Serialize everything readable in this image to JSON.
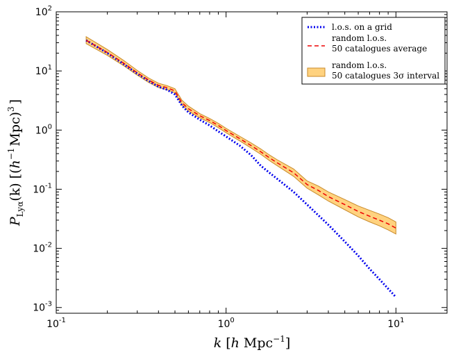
{
  "chart_data": {
    "type": "line",
    "xscale": "log",
    "yscale": "log",
    "xlim": [
      0.1,
      20
    ],
    "ylim": [
      0.0008,
      100
    ],
    "xlabel": {
      "var": "k",
      "open": "[",
      "h": "h",
      "unit": "Mpc",
      "exp": "−1",
      "close": "]"
    },
    "ylabel": {
      "var": "P",
      "sub": "Lyα",
      "arg": "(k)",
      "open": "[(",
      "h": "h",
      "hexp": "−1",
      "unit": "Mpc)",
      "exp": "3",
      "close": "]"
    },
    "x_ticks": [
      {
        "value": 0.1,
        "base": "10",
        "exp": "-1"
      },
      {
        "value": 1,
        "base": "10",
        "exp": "0"
      },
      {
        "value": 10,
        "base": "10",
        "exp": "1"
      }
    ],
    "y_ticks": [
      {
        "value": 0.001,
        "base": "10",
        "exp": "-3"
      },
      {
        "value": 0.01,
        "base": "10",
        "exp": "-2"
      },
      {
        "value": 0.1,
        "base": "10",
        "exp": "-1"
      },
      {
        "value": 1,
        "base": "10",
        "exp": "0"
      },
      {
        "value": 10,
        "base": "10",
        "exp": "1"
      },
      {
        "value": 100,
        "base": "10",
        "exp": "2"
      }
    ],
    "legend_position": "top-right",
    "series": [
      {
        "name": "l.o.s. on a grid",
        "style": "dotted",
        "color": "#0000ee",
        "x": [
          0.15,
          0.2,
          0.25,
          0.3,
          0.35,
          0.4,
          0.45,
          0.5,
          0.55,
          0.6,
          0.7,
          0.8,
          0.9,
          1.0,
          1.2,
          1.4,
          1.6,
          1.8,
          2.0,
          2.5,
          3.0,
          4.0,
          5.0,
          6.0,
          7.0,
          8.0,
          10.0
        ],
        "y": [
          33,
          20,
          13,
          9.0,
          6.8,
          5.4,
          4.8,
          4.0,
          2.6,
          2.0,
          1.5,
          1.2,
          0.95,
          0.78,
          0.55,
          0.38,
          0.25,
          0.19,
          0.15,
          0.09,
          0.055,
          0.025,
          0.013,
          0.0075,
          0.0045,
          0.003,
          0.0015
        ]
      },
      {
        "name": "random l.o.s.\n50 catalogues average",
        "style": "dashed",
        "color": "#ee0000",
        "x": [
          0.15,
          0.2,
          0.25,
          0.3,
          0.35,
          0.4,
          0.45,
          0.5,
          0.55,
          0.6,
          0.7,
          0.8,
          0.9,
          1.0,
          1.2,
          1.4,
          1.6,
          1.8,
          2.0,
          2.5,
          3.0,
          3.5,
          4.0,
          5.0,
          6.0,
          7.0,
          8.0,
          9.0,
          10.0
        ],
        "y": [
          33,
          20.5,
          13.5,
          9.3,
          7.0,
          5.7,
          5.2,
          4.6,
          2.9,
          2.3,
          1.75,
          1.45,
          1.2,
          0.98,
          0.72,
          0.55,
          0.43,
          0.34,
          0.28,
          0.19,
          0.12,
          0.095,
          0.075,
          0.055,
          0.042,
          0.035,
          0.03,
          0.026,
          0.022
        ]
      }
    ],
    "band": {
      "name": "random l.o.s.\n50 catalogues 3σ interval",
      "fill": "#ffd27f",
      "edge": "#c98a2a",
      "x": [
        0.15,
        0.2,
        0.25,
        0.3,
        0.35,
        0.4,
        0.45,
        0.5,
        0.55,
        0.6,
        0.7,
        0.8,
        0.9,
        1.0,
        1.2,
        1.4,
        1.6,
        1.8,
        2.0,
        2.5,
        3.0,
        3.5,
        4.0,
        5.0,
        6.0,
        7.0,
        8.0,
        9.0,
        10.0
      ],
      "low": [
        29,
        18.3,
        12.2,
        8.5,
        6.4,
        5.25,
        4.8,
        4.25,
        2.65,
        2.1,
        1.62,
        1.34,
        1.1,
        0.9,
        0.66,
        0.5,
        0.39,
        0.305,
        0.25,
        0.165,
        0.104,
        0.08,
        0.063,
        0.045,
        0.034,
        0.028,
        0.024,
        0.0205,
        0.0175
      ],
      "high": [
        38,
        23,
        15.0,
        10.2,
        7.6,
        6.2,
        5.65,
        5.0,
        3.2,
        2.55,
        1.9,
        1.57,
        1.3,
        1.07,
        0.79,
        0.61,
        0.48,
        0.38,
        0.315,
        0.22,
        0.138,
        0.113,
        0.09,
        0.067,
        0.052,
        0.044,
        0.038,
        0.033,
        0.028
      ]
    }
  }
}
